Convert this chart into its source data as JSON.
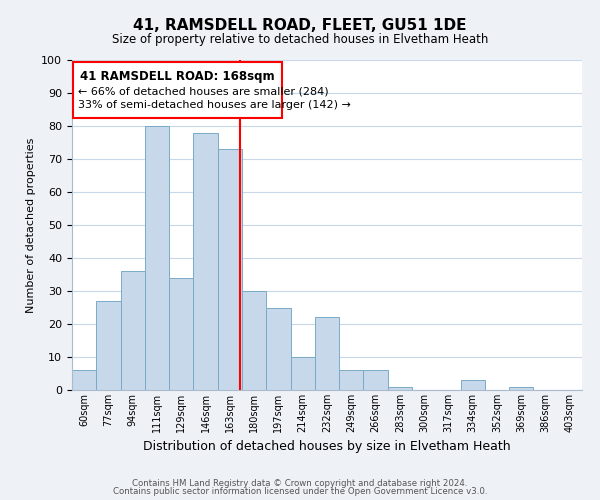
{
  "title": "41, RAMSDELL ROAD, FLEET, GU51 1DE",
  "subtitle": "Size of property relative to detached houses in Elvetham Heath",
  "xlabel": "Distribution of detached houses by size in Elvetham Heath",
  "ylabel": "Number of detached properties",
  "bin_labels": [
    "60sqm",
    "77sqm",
    "94sqm",
    "111sqm",
    "129sqm",
    "146sqm",
    "163sqm",
    "180sqm",
    "197sqm",
    "214sqm",
    "232sqm",
    "249sqm",
    "266sqm",
    "283sqm",
    "300sqm",
    "317sqm",
    "334sqm",
    "352sqm",
    "369sqm",
    "386sqm",
    "403sqm"
  ],
  "bar_heights": [
    6,
    27,
    36,
    80,
    34,
    78,
    73,
    30,
    25,
    10,
    22,
    6,
    6,
    1,
    0,
    0,
    3,
    0,
    1,
    0,
    0
  ],
  "bar_color": "#c8d8eb",
  "bar_edge_color": "#7aaac8",
  "vline_x_index": 6.93,
  "annotation_title": "41 RAMSDELL ROAD: 168sqm",
  "annotation_line1": "← 66% of detached houses are smaller (284)",
  "annotation_line2": "33% of semi-detached houses are larger (142) →",
  "ylim": [
    0,
    100
  ],
  "yticks": [
    0,
    10,
    20,
    30,
    40,
    50,
    60,
    70,
    80,
    90,
    100
  ],
  "footer1": "Contains HM Land Registry data © Crown copyright and database right 2024.",
  "footer2": "Contains public sector information licensed under the Open Government Licence v3.0.",
  "bg_color": "#eef2f7",
  "plot_bg_color": "#ffffff",
  "grid_color": "#c8d8e8"
}
